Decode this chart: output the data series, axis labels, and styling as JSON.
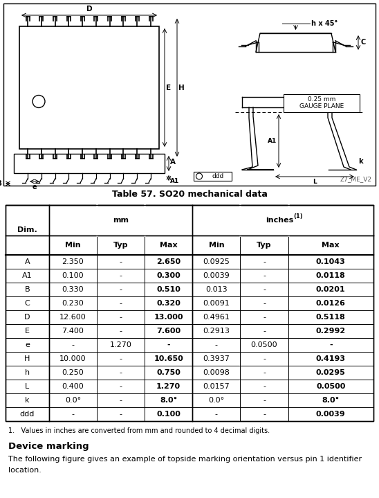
{
  "title": "Table 57. SO20 mechanical data",
  "rows": [
    [
      "A",
      "2.350",
      "-",
      "2.650",
      "0.0925",
      "-",
      "0.1043"
    ],
    [
      "A1",
      "0.100",
      "-",
      "0.300",
      "0.0039",
      "-",
      "0.0118"
    ],
    [
      "B",
      "0.330",
      "-",
      "0.510",
      "0.013",
      "-",
      "0.0201"
    ],
    [
      "C",
      "0.230",
      "-",
      "0.320",
      "0.0091",
      "-",
      "0.0126"
    ],
    [
      "D",
      "12.600",
      "-",
      "13.000",
      "0.4961",
      "-",
      "0.5118"
    ],
    [
      "E",
      "7.400",
      "-",
      "7.600",
      "0.2913",
      "-",
      "0.2992"
    ],
    [
      "e",
      "-",
      "1.270",
      "-",
      "-",
      "0.0500",
      "-"
    ],
    [
      "H",
      "10.000",
      "-",
      "10.650",
      "0.3937",
      "-",
      "0.4193"
    ],
    [
      "h",
      "0.250",
      "-",
      "0.750",
      "0.0098",
      "-",
      "0.0295"
    ],
    [
      "L",
      "0.400",
      "-",
      "1.270",
      "0.0157",
      "-",
      "0.0500"
    ],
    [
      "k",
      "0.0°",
      "-",
      "8.0°",
      "0.0°",
      "-",
      "8.0°"
    ],
    [
      "ddd",
      "-",
      "-",
      "0.100",
      "-",
      "-",
      "0.0039"
    ]
  ],
  "footnote": "1.   Values in inches are converted from mm and rounded to 4 decimal digits.",
  "device_marking_title": "Device marking",
  "device_marking_text": "The following figure gives an example of topside marking orientation versus pin 1 identifier\nlocation.",
  "bg_color": "#ffffff",
  "z7_label": "Z7_ME_V2",
  "fig_width": 5.48,
  "fig_height": 7.19,
  "dpi": 100
}
